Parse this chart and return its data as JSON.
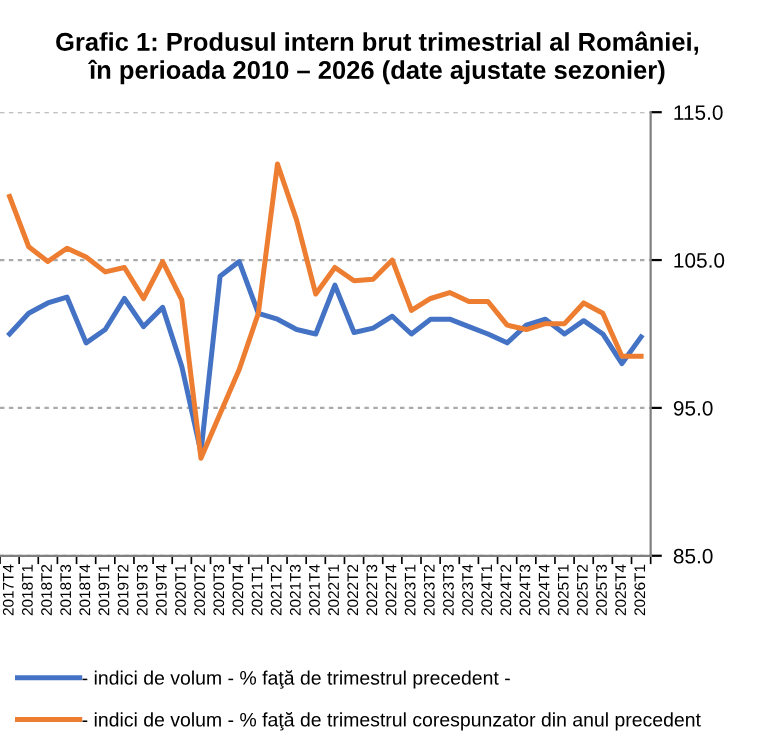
{
  "chart_data": {
    "type": "line",
    "title": "Grafic 1: Produsul intern brut trimestrial al României,\nîn perioada 2010 – 2026 (date ajustate sezonier)",
    "categories": [
      "2017T4",
      "2018T1",
      "2018T2",
      "2018T3",
      "2018T4",
      "2019T1",
      "2019T2",
      "2019T3",
      "2019T4",
      "2020T1",
      "2020T2",
      "2020T3",
      "2020T4",
      "2021T1",
      "2021T2",
      "2021T3",
      "2021T4",
      "2022T1",
      "2022T2",
      "2022T3",
      "2022T4",
      "2023T1",
      "2023T2",
      "2023T3",
      "2023T4",
      "2024T1",
      "2024T2",
      "2024T3",
      "2024T4",
      "2025T1",
      "2025T2",
      "2025T3",
      "2025T4",
      "2026T1"
    ],
    "series": [
      {
        "name": "- indici de volum - % faţă de trimestrul precedent -",
        "color": "#4472c4",
        "values": [
          100.0,
          101.4,
          102.1,
          102.5,
          99.4,
          100.3,
          102.4,
          100.5,
          101.8,
          97.8,
          92.0,
          103.9,
          104.9,
          101.4,
          101.0,
          100.3,
          100.0,
          103.3,
          100.1,
          100.4,
          101.2,
          100.0,
          101.0,
          101.0,
          100.5,
          100.0,
          99.4,
          100.6,
          101.0,
          100.0,
          100.9,
          100.0,
          98.0,
          99.8
        ]
      },
      {
        "name": "- indici de volum - % faţă de trimestrul corespunzator din anul precedent",
        "color": "#ed7d31",
        "values": [
          109.3,
          105.9,
          104.9,
          105.8,
          105.2,
          104.2,
          104.5,
          102.4,
          104.9,
          102.3,
          91.6,
          94.6,
          97.6,
          101.4,
          111.5,
          107.7,
          102.7,
          104.5,
          103.6,
          103.7,
          105.0,
          101.6,
          102.4,
          102.8,
          102.2,
          102.2,
          100.6,
          100.3,
          100.7,
          100.7,
          102.1,
          101.4,
          98.5,
          98.5
        ]
      }
    ],
    "ylim": [
      85,
      115
    ],
    "yticks": [
      {
        "value": 85,
        "label": "85.0"
      },
      {
        "value": 95,
        "label": "95.0"
      },
      {
        "value": 105,
        "label": "105.0"
      },
      {
        "value": 115,
        "label": "115.0"
      }
    ],
    "grid": "y",
    "legend": "bottom",
    "marker": "none",
    "line_style": "solid"
  }
}
